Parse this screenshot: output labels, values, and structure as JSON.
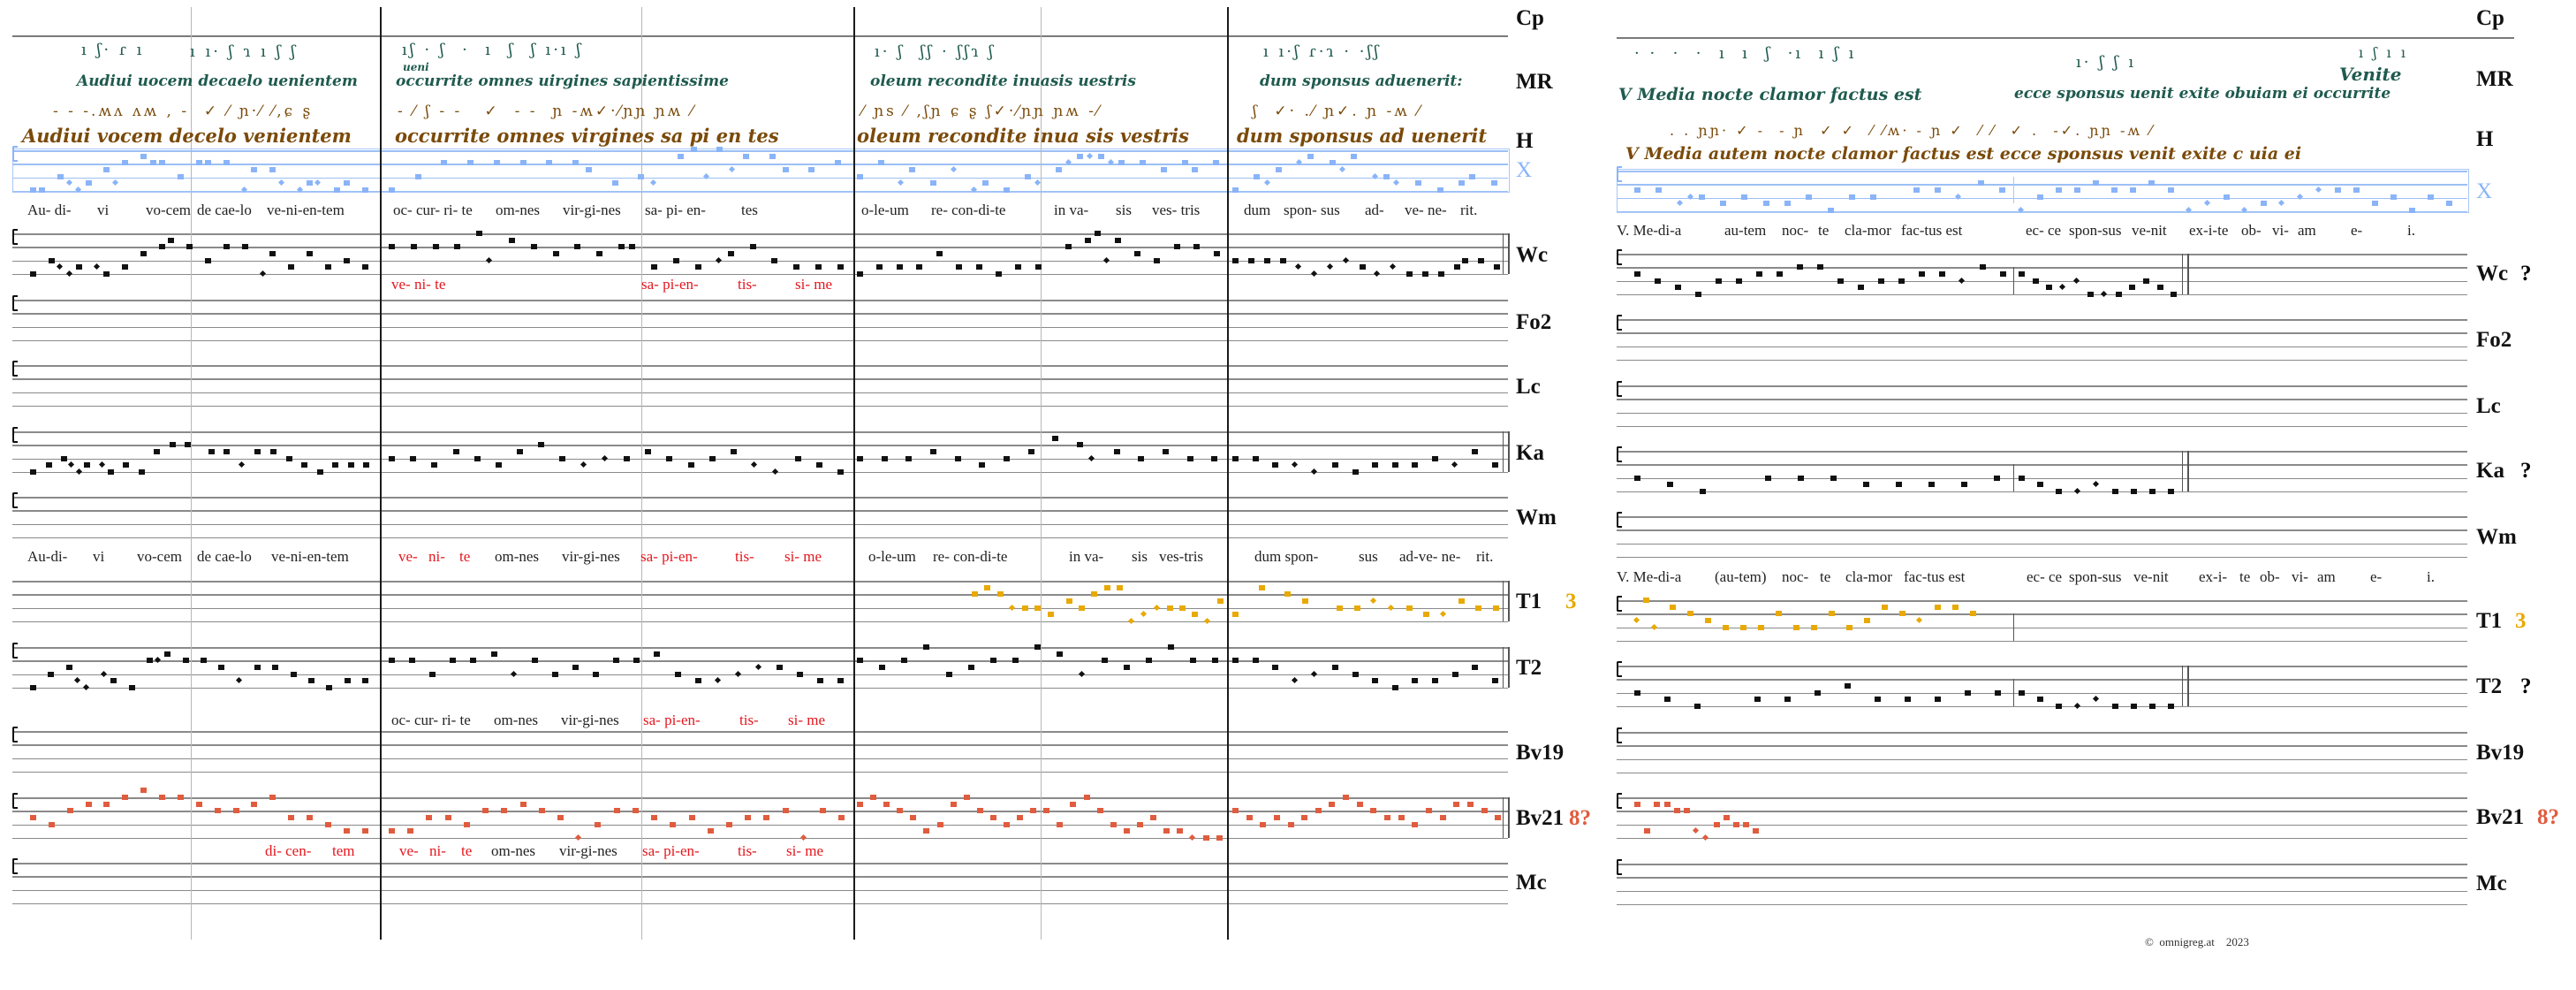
{
  "left": {
    "labels": [
      "Cp",
      "MR",
      "H",
      "X",
      "Wc",
      "Fo2",
      "Lc",
      "Ka",
      "Wm",
      "T1",
      "T2",
      "Bv19",
      "Bv21",
      "Mc"
    ],
    "mode_t1": "3",
    "mode_bv21": "8?",
    "mr_text": [
      "Audiui uocem decaelo uenientem",
      "occurrite omnes uirgines sapientissime",
      "oleum recondite inuasis uestris",
      "dum sponsus aduenerit:"
    ],
    "mr_variant": "ueni",
    "h_text": [
      "Audiui vocem decelo venientem",
      "occurrite omnes virgines sa pi en tes",
      "oleum recondite inua sis vestris",
      "dum sponsus ad uenerit"
    ],
    "lyrics_x": [
      {
        "text": "Au- di-"
      },
      {
        "text": "vi"
      },
      {
        "text": "vo-cem"
      },
      {
        "text": "de cae-lo"
      },
      {
        "text": "ve-ni-en-tem"
      },
      {
        "text": "oc- cur- ri- te"
      },
      {
        "text": "om-nes"
      },
      {
        "text": "vir-gi-nes"
      },
      {
        "text": "sa- pi- en-"
      },
      {
        "text": "tes"
      },
      {
        "text": "o-le-um"
      },
      {
        "text": "re- con-di-te"
      },
      {
        "text": "in va-"
      },
      {
        "text": "sis"
      },
      {
        "text": "ves- tris"
      },
      {
        "text": "dum"
      },
      {
        "text": "spon- sus"
      },
      {
        "text": "ad-"
      },
      {
        "text": "ve- ne-"
      },
      {
        "text": "rit."
      }
    ],
    "lyrics_wc": [
      {
        "text": "ve- ni- te",
        "red": true
      },
      {
        "text": "sa- pi-en-",
        "red": true
      },
      {
        "text": "tis-",
        "red": true
      },
      {
        "text": "si- me",
        "red": true
      }
    ],
    "lyrics_wm": [
      {
        "text": "Au-di-"
      },
      {
        "text": "vi"
      },
      {
        "text": "vo-cem"
      },
      {
        "text": "de cae-lo"
      },
      {
        "text": "ve-ni-en-tem"
      },
      {
        "text": "ve-",
        "red": true
      },
      {
        "text": "ni-",
        "red": true
      },
      {
        "text": "te",
        "red": true
      },
      {
        "text": "om-nes"
      },
      {
        "text": "vir-gi-nes"
      },
      {
        "text": "sa- pi-en-",
        "red": true
      },
      {
        "text": "tis-",
        "red": true
      },
      {
        "text": "si- me",
        "red": true
      },
      {
        "text": "o-le-um"
      },
      {
        "text": "re- con-di-te"
      },
      {
        "text": "in va-"
      },
      {
        "text": "sis"
      },
      {
        "text": "ves-tris"
      },
      {
        "text": "dum spon-"
      },
      {
        "text": "sus"
      },
      {
        "text": "ad-ve- ne-"
      },
      {
        "text": "rit."
      }
    ],
    "lyrics_t2": [
      {
        "text": "oc- cur- ri- te"
      },
      {
        "text": "om-nes"
      },
      {
        "text": "vir-gi-nes"
      },
      {
        "text": "sa- pi-en-",
        "red": true
      },
      {
        "text": "tis-",
        "red": true
      },
      {
        "text": "si- me",
        "red": true
      }
    ],
    "lyrics_bv21": [
      {
        "text": "di- cen-",
        "red": true
      },
      {
        "text": "tem",
        "red": true
      },
      {
        "text": "ve-",
        "red": true
      },
      {
        "text": "ni-",
        "red": true
      },
      {
        "text": "te",
        "red": true
      },
      {
        "text": "om-nes"
      },
      {
        "text": "vir-gi-nes"
      },
      {
        "text": "sa- pi-en-",
        "red": true
      },
      {
        "text": "tis-",
        "red": true
      },
      {
        "text": "si- me",
        "red": true
      }
    ]
  },
  "right": {
    "labels": [
      "Cp",
      "MR",
      "H",
      "X",
      "Wc",
      "Fo2",
      "Lc",
      "Ka",
      "Wm",
      "T1",
      "T2",
      "Bv19",
      "Bv21",
      "Mc"
    ],
    "query_wc": "?",
    "query_ka": "?",
    "query_t2": "?",
    "mode_t1": "3",
    "mode_bv21": "8?",
    "mr_text": [
      "V Media nocte clamor factus est",
      "ecce sponsus uenit exite obuiam ei occurrite"
    ],
    "mr_variant": "Venite",
    "h_text": [
      "V Media autem nocte clamor factus est ecce sponsus venit exite c uia ei"
    ],
    "lyrics_x": [
      {
        "text": "V. Me-di-a"
      },
      {
        "text": "au-tem"
      },
      {
        "text": "noc-"
      },
      {
        "text": "te"
      },
      {
        "text": "cla-mor"
      },
      {
        "text": "fac-tus est"
      },
      {
        "text": "ec- ce"
      },
      {
        "text": "spon-sus"
      },
      {
        "text": "ve-nit"
      },
      {
        "text": "ex-i-te"
      },
      {
        "text": "ob-"
      },
      {
        "text": "vi-"
      },
      {
        "text": "am"
      },
      {
        "text": "e-"
      },
      {
        "text": "i."
      }
    ],
    "lyrics_wm": [
      {
        "text": "V. Me-di-a"
      },
      {
        "text": "(au-tem)"
      },
      {
        "text": "noc-"
      },
      {
        "text": "te"
      },
      {
        "text": "cla-mor"
      },
      {
        "text": "fac-tus est"
      },
      {
        "text": "ec- ce"
      },
      {
        "text": "spon-sus"
      },
      {
        "text": "ve-nit"
      },
      {
        "text": "ex-i-"
      },
      {
        "text": "te"
      },
      {
        "text": "ob-"
      },
      {
        "text": "vi-"
      },
      {
        "text": "am"
      },
      {
        "text": "e-"
      },
      {
        "text": "i."
      }
    ]
  },
  "colors": {
    "blue": "#8ab4f8",
    "orange": "#e8a900",
    "bv21": "#e05c3e",
    "red": "#e5161d",
    "mr": "#1f5a4e",
    "h": "#7a4a0a",
    "green": "#5a9a68"
  },
  "footer": {
    "copyright": "©  omnigreg.at    2023"
  }
}
